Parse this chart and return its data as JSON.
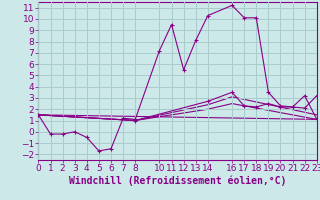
{
  "xlabel": "Windchill (Refroidissement éolien,°C)",
  "background_color": "#cce8e8",
  "grid_color": "#aacccc",
  "line_color": "#880088",
  "xlim": [
    0,
    23
  ],
  "ylim": [
    -2.5,
    11.5
  ],
  "yticks": [
    -2,
    -1,
    0,
    1,
    2,
    3,
    4,
    5,
    6,
    7,
    8,
    9,
    10,
    11
  ],
  "xticks": [
    0,
    1,
    2,
    3,
    4,
    5,
    6,
    7,
    8,
    10,
    11,
    12,
    13,
    14,
    16,
    17,
    18,
    19,
    20,
    21,
    22,
    23
  ],
  "main_x": [
    0,
    1,
    2,
    3,
    4,
    5,
    6,
    7,
    8,
    10,
    11,
    12,
    13,
    14,
    16,
    17,
    18,
    19,
    20,
    21,
    22,
    23
  ],
  "main_y": [
    1.5,
    -0.2,
    -0.2,
    0.0,
    -0.5,
    -1.7,
    -1.5,
    1.2,
    1.1,
    7.2,
    9.5,
    5.5,
    8.1,
    10.3,
    11.2,
    10.1,
    10.1,
    3.5,
    2.3,
    2.2,
    2.1,
    3.2
  ],
  "trend1_x": [
    0,
    23
  ],
  "trend1_y": [
    1.5,
    1.1
  ],
  "trend2_x": [
    0,
    8,
    14,
    16,
    23
  ],
  "trend2_y": [
    1.5,
    1.0,
    2.0,
    2.5,
    1.1
  ],
  "trend3_x": [
    0,
    8,
    14,
    16,
    23
  ],
  "trend3_y": [
    1.5,
    1.0,
    2.4,
    3.1,
    1.5
  ],
  "trend4_x": [
    0,
    8,
    14,
    16,
    17,
    18,
    19,
    20,
    21,
    22,
    23
  ],
  "trend4_y": [
    1.5,
    1.0,
    2.7,
    3.5,
    2.3,
    2.2,
    2.5,
    2.2,
    2.2,
    3.2,
    1.1
  ],
  "fontsize_label": 7,
  "fontsize_tick": 6.5
}
